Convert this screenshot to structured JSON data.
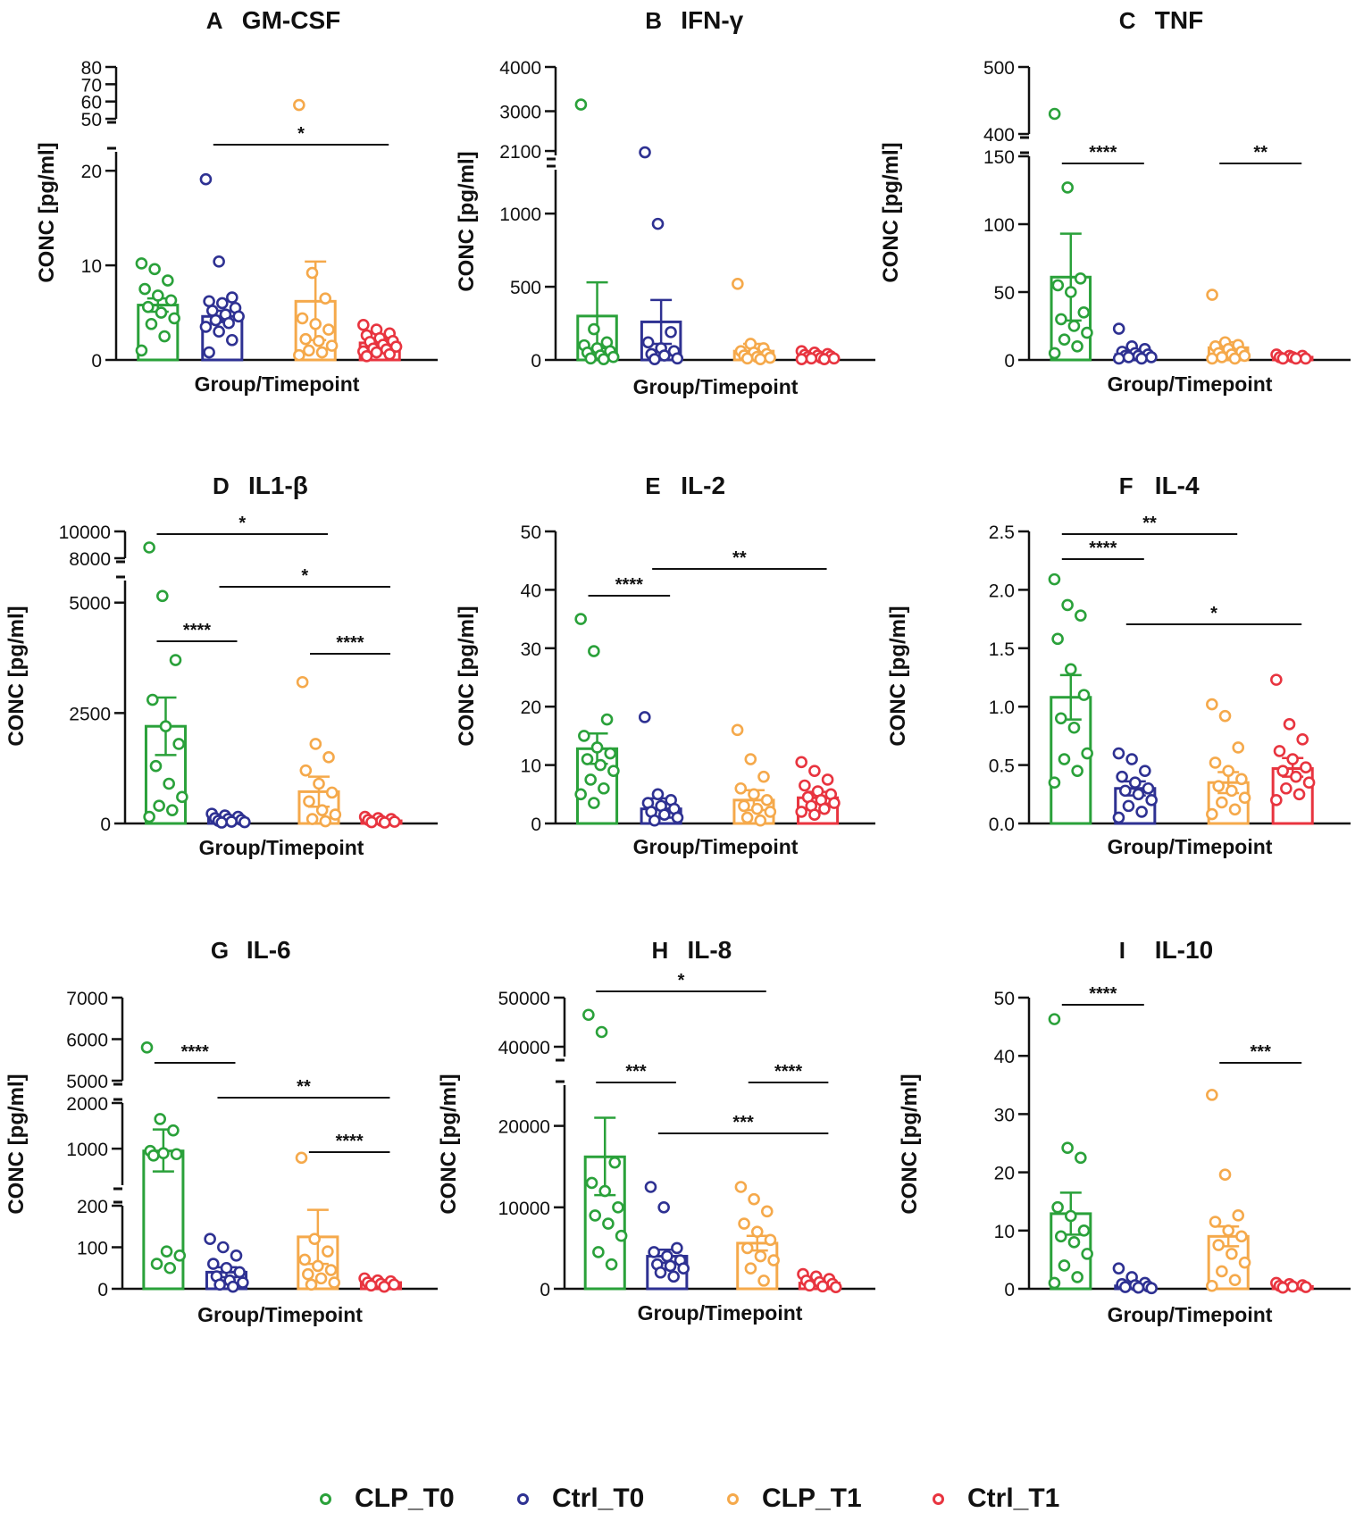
{
  "chart_data": [
    {
      "type": "bar-scatter",
      "panel": "A",
      "title": "GM-CSF",
      "xlabel": "Group/Timepoint",
      "ylabel": "CONC [pg/ml]",
      "y_broken": true,
      "low_range": [
        0,
        22
      ],
      "low_ticks": [
        0,
        10,
        20
      ],
      "high_range": [
        50,
        80
      ],
      "high_ticks": [
        50,
        60,
        70,
        80
      ],
      "groups": [
        {
          "name": "CLP_T0",
          "mean": 5.8,
          "error": [
            5.1,
            6.5
          ],
          "points": [
            10.2,
            9.6,
            8.4,
            7.5,
            6.8,
            6.3,
            5.6,
            5.0,
            4.4,
            3.8,
            2.5,
            1.0
          ]
        },
        {
          "name": "Ctrl_T0",
          "mean": 4.6,
          "error": [
            4.0,
            5.2
          ],
          "points": [
            19.1,
            10.4,
            6.6,
            6.2,
            6.0,
            5.5,
            5.2,
            4.8,
            4.6,
            4.2,
            3.9,
            3.5,
            3.0,
            2.1,
            0.8
          ]
        },
        {
          "name": "CLP_T1",
          "mean": 6.2,
          "error": [
            2.1,
            10.4
          ],
          "points": [
            58.0,
            9.2,
            6.5,
            4.4,
            3.8,
            3.2,
            2.2,
            2.0,
            1.5,
            1.0,
            0.8,
            0.5
          ]
        },
        {
          "name": "Ctrl_T1",
          "mean": 1.8,
          "error": [
            1.4,
            2.2
          ],
          "points": [
            3.7,
            3.2,
            2.8,
            2.6,
            2.3,
            2.0,
            1.9,
            1.6,
            1.4,
            1.2,
            1.1,
            0.9,
            0.8,
            0.6,
            0.4
          ]
        }
      ],
      "significance": [
        {
          "from": 1,
          "to": 3,
          "label": "*",
          "level": 0
        }
      ]
    },
    {
      "type": "bar-scatter",
      "panel": "B",
      "title": "IFN-γ",
      "xlabel": "Group/Timepoint",
      "ylabel": "CONC [pg/ml]",
      "y_broken": true,
      "low_range": [
        0,
        1300
      ],
      "low_ticks": [
        0,
        500,
        1000
      ],
      "high_range": [
        2000,
        4000
      ],
      "high_ticks": [
        2100,
        3000,
        4000
      ],
      "groups": [
        {
          "name": "CLP_T0",
          "mean": 300,
          "error": [
            80,
            530
          ],
          "points": [
            3150,
            210,
            120,
            100,
            80,
            60,
            50,
            30,
            20,
            10,
            5
          ]
        },
        {
          "name": "Ctrl_T0",
          "mean": 260,
          "error": [
            110,
            410
          ],
          "points": [
            2070,
            930,
            190,
            120,
            80,
            60,
            40,
            30,
            10,
            5
          ]
        },
        {
          "name": "CLP_T1",
          "mean": 60,
          "error": [
            30,
            110
          ],
          "points": [
            520,
            110,
            80,
            60,
            50,
            40,
            30,
            20,
            15,
            10,
            5
          ]
        },
        {
          "name": "Ctrl_T1",
          "mean": 25,
          "error": [
            15,
            35
          ],
          "points": [
            60,
            50,
            40,
            35,
            30,
            25,
            20,
            15,
            10,
            10,
            5,
            5
          ]
        }
      ],
      "significance": []
    },
    {
      "type": "bar-scatter",
      "panel": "C",
      "title": "TNF",
      "xlabel": "Group/Timepoint",
      "ylabel": "CONC [pg/ml]",
      "y_broken": true,
      "low_range": [
        0,
        150
      ],
      "low_ticks": [
        0,
        50,
        100,
        150
      ],
      "high_range": [
        400,
        500
      ],
      "high_ticks": [
        400,
        500
      ],
      "groups": [
        {
          "name": "CLP_T0",
          "mean": 61,
          "error": [
            29,
            93
          ],
          "points": [
            430,
            127,
            60,
            55,
            50,
            35,
            30,
            25,
            20,
            15,
            10,
            5
          ]
        },
        {
          "name": "Ctrl_T0",
          "mean": 4,
          "error": [
            2,
            6
          ],
          "points": [
            23,
            10,
            8,
            6,
            5,
            4,
            3,
            3,
            2,
            2,
            1,
            1
          ]
        },
        {
          "name": "CLP_T1",
          "mean": 9,
          "error": [
            5,
            13
          ],
          "points": [
            48,
            13,
            11,
            10,
            8,
            6,
            5,
            4,
            3,
            2,
            1,
            1
          ]
        },
        {
          "name": "Ctrl_T1",
          "mean": 2,
          "error": [
            1,
            3
          ],
          "points": [
            4,
            3,
            3,
            2,
            2,
            1,
            1,
            1
          ]
        }
      ],
      "significance": [
        {
          "from": 0,
          "to": 1,
          "label": "****",
          "level": 0
        },
        {
          "from": 2,
          "to": 3,
          "label": "**",
          "level": 0
        }
      ]
    },
    {
      "type": "bar-scatter",
      "panel": "D",
      "title": "IL1-β",
      "xlabel": "Group/Timepoint",
      "ylabel": "CONC [pg/ml]",
      "y_broken": true,
      "low_range": [
        0,
        5500
      ],
      "low_ticks": [
        0,
        2500,
        5000
      ],
      "high_range": [
        8000,
        10000
      ],
      "high_ticks": [
        8000,
        10000
      ],
      "groups": [
        {
          "name": "CLP_T0",
          "mean": 2200,
          "error": [
            1550,
            2850
          ],
          "points": [
            8800,
            5150,
            3700,
            2800,
            2200,
            1800,
            1300,
            900,
            600,
            400,
            300,
            150
          ]
        },
        {
          "name": "Ctrl_T0",
          "mean": 100,
          "error": [
            60,
            140
          ],
          "points": [
            220,
            180,
            150,
            120,
            100,
            80,
            60,
            40,
            30,
            20
          ]
        },
        {
          "name": "CLP_T1",
          "mean": 720,
          "error": [
            380,
            1060
          ],
          "points": [
            3200,
            1800,
            1500,
            1200,
            900,
            700,
            500,
            300,
            200,
            100,
            50
          ]
        },
        {
          "name": "Ctrl_T1",
          "mean": 60,
          "error": [
            40,
            80
          ],
          "points": [
            150,
            120,
            100,
            80,
            60,
            40,
            30,
            20
          ]
        }
      ],
      "significance": [
        {
          "from": 0,
          "to": 2,
          "label": "*",
          "level": 2
        },
        {
          "from": 1,
          "to": 3,
          "label": "*",
          "level": 1
        },
        {
          "from": 0,
          "to": 1,
          "label": "****",
          "level": 0
        },
        {
          "from": 2,
          "to": 3,
          "label": "****",
          "level": 0
        }
      ]
    },
    {
      "type": "bar-scatter",
      "panel": "E",
      "title": "IL-2",
      "xlabel": "Group/Timepoint",
      "ylabel": "CONC [pg/ml]",
      "y_broken": false,
      "low_range": [
        0,
        50
      ],
      "low_ticks": [
        0,
        10,
        20,
        30,
        40,
        50
      ],
      "groups": [
        {
          "name": "CLP_T0",
          "mean": 12.8,
          "error": [
            10.2,
            15.4
          ],
          "points": [
            35,
            29.5,
            17.8,
            15,
            13,
            12,
            11,
            10,
            9,
            7.5,
            6,
            5,
            3.5
          ]
        },
        {
          "name": "Ctrl_T0",
          "mean": 2.5,
          "error": [
            1.0,
            4.3
          ],
          "points": [
            18.2,
            5,
            4,
            3.5,
            3,
            2.5,
            2,
            1.5,
            1,
            0.5
          ]
        },
        {
          "name": "CLP_T1",
          "mean": 4,
          "error": [
            2.3,
            5.7
          ],
          "points": [
            16,
            11,
            8,
            6,
            5,
            4,
            3,
            2.5,
            2,
            1,
            0.5
          ]
        },
        {
          "name": "Ctrl_T1",
          "mean": 4.4,
          "error": [
            3.4,
            5.4
          ],
          "points": [
            10.5,
            9,
            7.5,
            6.5,
            5.5,
            5,
            4.5,
            4,
            3.5,
            3,
            2.5,
            2,
            1.5
          ]
        }
      ],
      "significance": [
        {
          "from": 0,
          "to": 1,
          "label": "****",
          "level": 0
        },
        {
          "from": 1,
          "to": 3,
          "label": "**",
          "level": 1
        }
      ]
    },
    {
      "type": "bar-scatter",
      "panel": "F",
      "title": "IL-4",
      "xlabel": "Group/Timepoint",
      "ylabel": "CONC [pg/ml]",
      "y_broken": false,
      "low_range": [
        0,
        2.5
      ],
      "low_ticks": [
        0.0,
        0.5,
        1.0,
        1.5,
        2.0,
        2.5
      ],
      "groups": [
        {
          "name": "CLP_T0",
          "mean": 1.08,
          "error": [
            0.89,
            1.27
          ],
          "points": [
            2.09,
            1.87,
            1.78,
            1.58,
            1.32,
            1.1,
            0.9,
            0.82,
            0.6,
            0.55,
            0.45,
            0.35
          ]
        },
        {
          "name": "Ctrl_T0",
          "mean": 0.3,
          "error": [
            0.24,
            0.36
          ],
          "points": [
            0.6,
            0.55,
            0.45,
            0.4,
            0.35,
            0.3,
            0.28,
            0.25,
            0.2,
            0.15,
            0.1,
            0.05
          ]
        },
        {
          "name": "CLP_T1",
          "mean": 0.35,
          "error": [
            0.26,
            0.44
          ],
          "points": [
            1.02,
            0.92,
            0.65,
            0.52,
            0.45,
            0.38,
            0.32,
            0.28,
            0.22,
            0.18,
            0.12,
            0.08
          ]
        },
        {
          "name": "Ctrl_T1",
          "mean": 0.47,
          "error": [
            0.4,
            0.56
          ],
          "points": [
            1.23,
            0.85,
            0.72,
            0.62,
            0.55,
            0.48,
            0.45,
            0.4,
            0.35,
            0.3,
            0.25,
            0.2
          ]
        }
      ],
      "significance": [
        {
          "from": 0,
          "to": 2,
          "label": "**",
          "level": 2
        },
        {
          "from": 0,
          "to": 1,
          "label": "****",
          "level": 1
        },
        {
          "from": 1,
          "to": 3,
          "label": "*",
          "level": 0
        }
      ]
    },
    {
      "type": "bar-scatter",
      "panel": "G",
      "title": "IL-6",
      "xlabel": "Group/Timepoint",
      "ylabel": "CONC [pg/ml]",
      "y_broken": true,
      "low_range": [
        0,
        200
      ],
      "low_ticks": [
        0,
        100,
        200
      ],
      "mid_range": [
        200,
        2000
      ],
      "mid_ticks": [
        1000,
        2000
      ],
      "high_range": [
        5000,
        7000
      ],
      "high_ticks": [
        5000,
        6000,
        7000
      ],
      "groups": [
        {
          "name": "CLP_T0",
          "mean": 950,
          "error": [
            500,
            1420
          ],
          "points": [
            5800,
            1650,
            1400,
            950,
            900,
            880,
            850,
            90,
            80,
            60,
            50
          ]
        },
        {
          "name": "Ctrl_T0",
          "mean": 40,
          "error": [
            28,
            52
          ],
          "points": [
            120,
            100,
            80,
            60,
            50,
            40,
            30,
            20,
            15,
            10,
            5
          ]
        },
        {
          "name": "CLP_T1",
          "mean": 125,
          "error": [
            60,
            190
          ],
          "points": [
            800,
            120,
            90,
            70,
            55,
            45,
            35,
            25,
            15,
            10
          ]
        },
        {
          "name": "Ctrl_T1",
          "mean": 15,
          "error": [
            10,
            20
          ],
          "points": [
            25,
            20,
            18,
            15,
            12,
            10,
            8,
            5
          ]
        }
      ],
      "significance": [
        {
          "from": 0,
          "to": 1,
          "label": "****",
          "level": 2
        },
        {
          "from": 1,
          "to": 3,
          "label": "**",
          "level": 1
        },
        {
          "from": 2,
          "to": 3,
          "label": "****",
          "level": 0
        }
      ]
    },
    {
      "type": "bar-scatter",
      "panel": "H",
      "title": "IL-8",
      "xlabel": "Group/Timepoint",
      "ylabel": "CONC [pg/ml]",
      "y_broken": true,
      "low_range": [
        0,
        25000
      ],
      "low_ticks": [
        0,
        10000,
        20000
      ],
      "high_range": [
        38000,
        50000
      ],
      "high_ticks": [
        40000,
        50000
      ],
      "groups": [
        {
          "name": "CLP_T0",
          "mean": 16200,
          "error": [
            11500,
            21000
          ],
          "points": [
            46500,
            43000,
            15500,
            13000,
            12000,
            10000,
            9000,
            8000,
            6500,
            4500,
            3000
          ]
        },
        {
          "name": "Ctrl_T0",
          "mean": 4000,
          "error": [
            3200,
            4800
          ],
          "points": [
            12500,
            10000,
            5000,
            4500,
            4000,
            3500,
            3000,
            2800,
            2500,
            2000,
            1500
          ]
        },
        {
          "name": "CLP_T1",
          "mean": 5600,
          "error": [
            4700,
            6500
          ],
          "points": [
            12500,
            11000,
            9500,
            8000,
            7000,
            6000,
            5000,
            4000,
            3500,
            2500,
            1000
          ]
        },
        {
          "name": "Ctrl_T1",
          "mean": 700,
          "error": [
            450,
            950
          ],
          "points": [
            1800,
            1500,
            1200,
            1000,
            800,
            600,
            400,
            300,
            200
          ]
        }
      ],
      "significance": [
        {
          "from": 0,
          "to": 2,
          "label": "*",
          "level": 3
        },
        {
          "from": 0,
          "to": 1,
          "label": "***",
          "level": 2
        },
        {
          "from": 2,
          "to": 3,
          "label": "****",
          "level": 2
        },
        {
          "from": 1,
          "to": 3,
          "label": "***",
          "level": 1
        }
      ]
    },
    {
      "type": "bar-scatter",
      "panel": "I",
      "title": "IL-10",
      "xlabel": "Group/Timepoint",
      "ylabel": "CONC [pg/ml]",
      "y_broken": false,
      "low_range": [
        0,
        50
      ],
      "low_ticks": [
        0,
        10,
        20,
        30,
        40,
        50
      ],
      "groups": [
        {
          "name": "CLP_T0",
          "mean": 12.9,
          "error": [
            9.3,
            16.5
          ],
          "points": [
            46.3,
            24.2,
            22.5,
            14,
            12.5,
            10,
            9,
            8,
            6,
            4,
            2,
            1
          ]
        },
        {
          "name": "Ctrl_T0",
          "mean": 0.5,
          "error": [
            0.2,
            0.8
          ],
          "points": [
            3.5,
            2,
            1,
            0.8,
            0.6,
            0.4,
            0.3,
            0.2,
            0.1
          ]
        },
        {
          "name": "CLP_T1",
          "mean": 9,
          "error": [
            7.3,
            10.7
          ],
          "points": [
            33.3,
            19.6,
            12.6,
            11.5,
            10,
            9,
            7.5,
            6,
            4.5,
            3,
            1.5,
            0.5
          ]
        },
        {
          "name": "Ctrl_T1",
          "mean": 0.4,
          "error": [
            0.2,
            0.6
          ],
          "points": [
            1,
            0.8,
            0.6,
            0.5,
            0.4,
            0.3,
            0.2
          ]
        }
      ],
      "significance": [
        {
          "from": 0,
          "to": 1,
          "label": "****",
          "level": 0
        },
        {
          "from": 2,
          "to": 3,
          "label": "***",
          "level": 0
        }
      ]
    }
  ],
  "legend": {
    "items": [
      {
        "label": "CLP_T0",
        "color": "#2aa13a"
      },
      {
        "label": "Ctrl_T0",
        "color": "#2e3192"
      },
      {
        "label": "CLP_T1",
        "color": "#f5a94b"
      },
      {
        "label": "Ctrl_T1",
        "color": "#e8343f"
      }
    ]
  },
  "colors": [
    "#2aa13a",
    "#2e3192",
    "#f5a94b",
    "#e8343f"
  ]
}
